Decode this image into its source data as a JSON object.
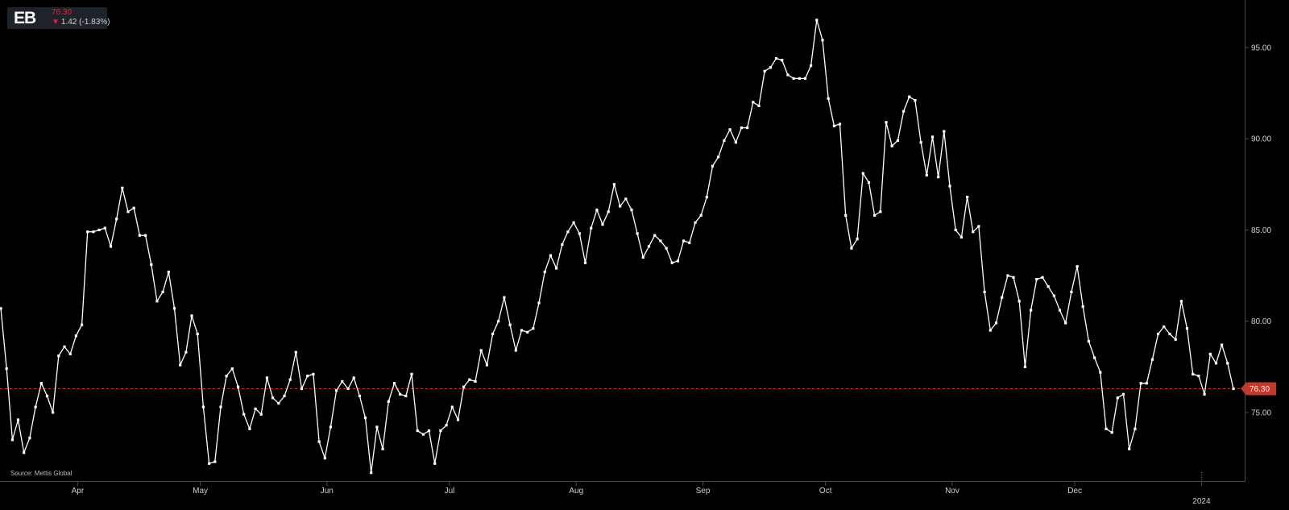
{
  "badge": {
    "symbol": "EB",
    "last_price": "76.30",
    "change": "1.42 (-1.83%)",
    "change_arrow_icon": "down-arrow-icon",
    "negative_color": "#e0233b"
  },
  "source": "Source: Mettis Global",
  "chart_data": {
    "type": "line",
    "title": "",
    "xlabel": "",
    "ylabel": "",
    "x_tick_labels": [
      "Apr",
      "May",
      "Jun",
      "Jul",
      "Aug",
      "Sep",
      "Oct",
      "Nov",
      "Dec",
      "2024"
    ],
    "y_tick_labels": [
      "75.00",
      "80.00",
      "85.00",
      "90.00",
      "95.00"
    ],
    "ylim": [
      71.2,
      97.6
    ],
    "xlim": [
      "2023-03-13",
      "2024-01-09"
    ],
    "last_value_label": "76.30",
    "reference_line": {
      "value": 76.3,
      "style": "dashed",
      "color": "#c0392b"
    },
    "line_color": "#ffffff",
    "marker": "square",
    "grid": false,
    "series": [
      {
        "values": [
          80.7,
          77.4,
          73.5,
          74.6,
          72.8,
          73.6,
          75.3,
          76.6,
          75.9,
          75.0,
          78.1,
          78.6,
          78.2,
          79.2,
          79.8,
          84.9,
          84.9,
          85.0,
          85.1,
          84.1,
          85.6,
          87.3,
          86.0,
          86.2,
          84.7,
          84.7,
          83.1,
          81.1,
          81.6,
          82.7,
          80.7,
          77.6,
          78.3,
          80.3,
          79.3,
          75.3,
          72.2,
          72.3,
          75.3,
          77.0,
          77.4,
          76.4,
          74.9,
          74.1,
          75.2,
          74.9,
          76.9,
          75.8,
          75.5,
          75.9,
          76.8,
          78.3,
          76.3,
          77.0,
          77.1,
          73.4,
          72.5,
          74.2,
          76.2,
          76.7,
          76.3,
          76.9,
          75.9,
          74.7,
          71.7,
          74.2,
          73.0,
          75.6,
          76.6,
          76.0,
          75.9,
          77.1,
          74.0,
          73.8,
          74.0,
          72.2,
          74.0,
          74.3,
          75.3,
          74.6,
          76.4,
          76.8,
          76.7,
          78.4,
          77.6,
          79.3,
          80.0,
          81.3,
          79.8,
          78.4,
          79.5,
          79.4,
          79.6,
          81.0,
          82.7,
          83.6,
          82.9,
          84.2,
          84.9,
          85.4,
          84.8,
          83.2,
          85.1,
          86.1,
          85.3,
          86.0,
          87.5,
          86.3,
          86.7,
          86.1,
          84.8,
          83.5,
          84.1,
          84.7,
          84.4,
          84.0,
          83.2,
          83.3,
          84.4,
          84.3,
          85.4,
          85.8,
          86.8,
          88.5,
          89.0,
          89.9,
          90.5,
          89.8,
          90.6,
          90.6,
          92.0,
          91.8,
          93.7,
          93.9,
          94.4,
          94.3,
          93.5,
          93.3,
          93.3,
          93.3,
          94.0,
          96.5,
          95.4,
          92.2,
          90.7,
          90.8,
          85.8,
          84.0,
          84.5,
          88.1,
          87.6,
          85.8,
          86.0,
          90.9,
          89.6,
          89.9,
          91.5,
          92.3,
          92.1,
          89.8,
          88.0,
          90.1,
          87.9,
          90.4,
          87.4,
          85.0,
          84.6,
          86.8,
          84.9,
          85.2,
          81.6,
          79.5,
          79.9,
          81.3,
          82.5,
          82.4,
          81.1,
          77.5,
          80.6,
          82.3,
          82.4,
          81.9,
          81.4,
          80.6,
          79.9,
          81.6,
          83.0,
          80.8,
          78.9,
          78.0,
          77.2,
          74.1,
          73.9,
          75.8,
          76.0,
          73.0,
          74.1,
          76.6,
          76.6,
          77.9,
          79.3,
          79.7,
          79.3,
          79.0,
          81.1,
          79.6,
          77.1,
          77.0,
          76.0,
          78.2,
          77.7,
          78.7,
          77.7,
          76.3
        ]
      }
    ]
  }
}
